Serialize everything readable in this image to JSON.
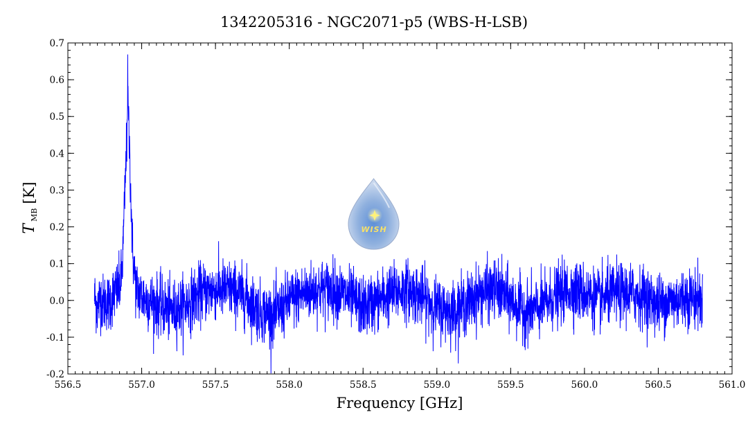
{
  "chart_data": {
    "type": "line",
    "title": "1342205316 - NGC2071-p5 (WBS-H-LSB)",
    "xlabel": "Frequency [GHz]",
    "ylabel": {
      "symbol": "T",
      "subscript": "MB",
      "unit": "[K]"
    },
    "xlim": [
      556.5,
      561.0
    ],
    "ylim": [
      -0.2,
      0.7
    ],
    "x_ticks": [
      "556.5",
      "557.0",
      "557.5",
      "558.0",
      "558.5",
      "559.0",
      "559.5",
      "560.0",
      "560.5",
      "561.0"
    ],
    "y_ticks": [
      "-0.2",
      "-0.1",
      "0.0",
      "0.1",
      "0.2",
      "0.3",
      "0.4",
      "0.5",
      "0.6",
      "0.7"
    ],
    "grid": false,
    "series": [
      {
        "color": "#0000ff",
        "x_range": [
          556.68,
          560.8
        ],
        "points": [
          [
            556.68,
            0.01
          ],
          [
            556.7,
            -0.02
          ],
          [
            556.72,
            0.01
          ],
          [
            556.74,
            -0.01
          ],
          [
            556.76,
            0.0
          ],
          [
            556.78,
            -0.01
          ],
          [
            556.8,
            0.01
          ],
          [
            556.82,
            0.02
          ],
          [
            556.84,
            0.03
          ],
          [
            556.86,
            0.05
          ],
          [
            556.87,
            0.1
          ],
          [
            556.88,
            0.22
          ],
          [
            556.89,
            0.33
          ],
          [
            556.9,
            0.45
          ],
          [
            556.905,
            0.59
          ],
          [
            556.91,
            0.5
          ],
          [
            556.92,
            0.38
          ],
          [
            556.93,
            0.24
          ],
          [
            556.94,
            0.12
          ],
          [
            556.96,
            0.04
          ],
          [
            556.98,
            0.02
          ],
          [
            557.0,
            0.01
          ],
          [
            557.05,
            0.0
          ],
          [
            557.1,
            -0.01
          ],
          [
            557.2,
            -0.03
          ],
          [
            557.3,
            -0.01
          ],
          [
            557.4,
            0.02
          ],
          [
            557.5,
            0.03
          ],
          [
            557.6,
            0.03
          ],
          [
            557.7,
            0.01
          ],
          [
            557.8,
            -0.03
          ],
          [
            557.9,
            -0.04
          ],
          [
            558.0,
            0.0
          ],
          [
            558.1,
            0.02
          ],
          [
            558.2,
            0.03
          ],
          [
            558.3,
            0.03
          ],
          [
            558.4,
            0.01
          ],
          [
            558.5,
            -0.02
          ],
          [
            558.6,
            0.0
          ],
          [
            558.7,
            0.02
          ],
          [
            558.8,
            0.03
          ],
          [
            558.9,
            0.01
          ],
          [
            559.0,
            -0.02
          ],
          [
            559.1,
            -0.03
          ],
          [
            559.2,
            -0.01
          ],
          [
            559.3,
            0.02
          ],
          [
            559.4,
            0.03
          ],
          [
            559.5,
            0.0
          ],
          [
            559.6,
            -0.03
          ],
          [
            559.7,
            -0.02
          ],
          [
            559.8,
            0.01
          ],
          [
            559.9,
            0.03
          ],
          [
            560.0,
            0.02
          ],
          [
            560.1,
            0.0
          ],
          [
            560.2,
            0.02
          ],
          [
            560.3,
            0.02
          ],
          [
            560.4,
            0.01
          ],
          [
            560.5,
            -0.01
          ],
          [
            560.6,
            0.0
          ],
          [
            560.7,
            0.01
          ],
          [
            560.8,
            0.0
          ]
        ],
        "noise_rms": 0.04
      }
    ],
    "logo": {
      "text": "WISH"
    }
  }
}
